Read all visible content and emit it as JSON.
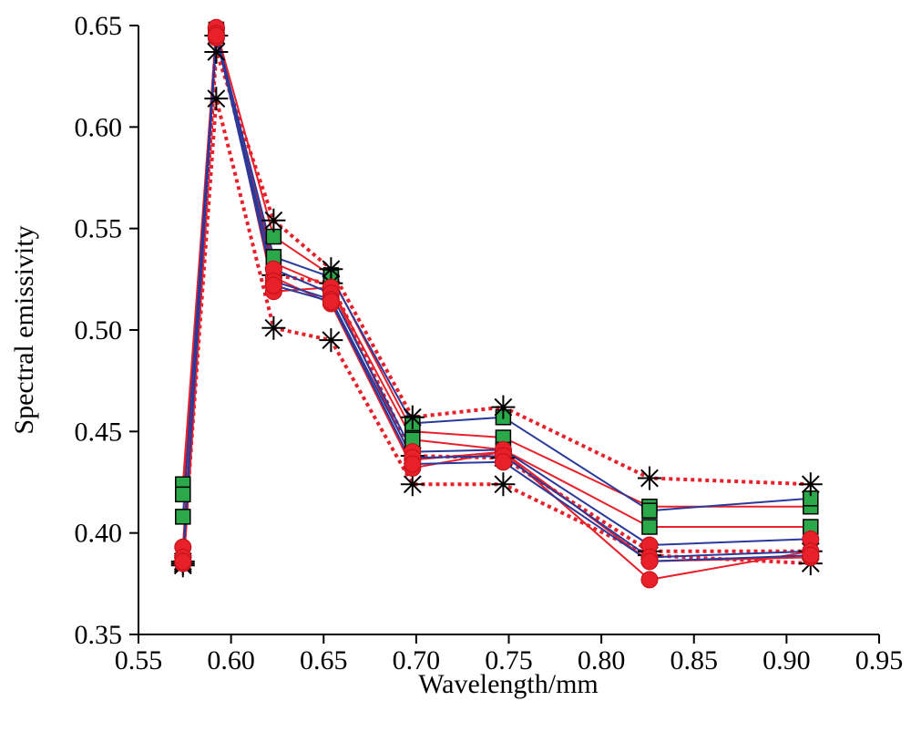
{
  "chart_data": {
    "type": "line",
    "title": "",
    "xlabel": "Wavelength/mm",
    "ylabel": "Spectral emissivity",
    "xlim": [
      0.55,
      0.95
    ],
    "ylim": [
      0.35,
      0.65
    ],
    "xticks": [
      "0.55",
      "0.60",
      "0.65",
      "0.70",
      "0.75",
      "0.80",
      "0.85",
      "0.90",
      "0.95"
    ],
    "yticks": [
      "0.35",
      "0.40",
      "0.45",
      "0.50",
      "0.55",
      "0.60",
      "0.65"
    ],
    "grid": false,
    "x": [
      0.574,
      0.592,
      0.623,
      0.654,
      0.698,
      0.747,
      0.826,
      0.913
    ],
    "series": [
      {
        "style": "dotted",
        "color": "#e8202a",
        "marker": "asterisk",
        "values": [
          0.384,
          0.637,
          0.554,
          0.53,
          0.457,
          0.462,
          0.427,
          0.424
        ]
      },
      {
        "style": "dotted",
        "color": "#e8202a",
        "marker": "asterisk",
        "values": [
          0.386,
          0.614,
          0.501,
          0.495,
          0.424,
          0.424,
          0.389,
          0.385
        ]
      },
      {
        "style": "dotted",
        "color": "#e8202a",
        "marker": "asterisk",
        "values": [
          0.385,
          0.645,
          0.527,
          0.523,
          0.438,
          0.437,
          0.391,
          0.391
        ]
      },
      {
        "style": "solid",
        "color": "#e8202a",
        "marker": "square",
        "values": [
          0.424,
          0.648,
          0.546,
          0.527,
          0.45,
          0.447,
          0.413,
          0.413
        ]
      },
      {
        "style": "solid",
        "color": "#e8202a",
        "marker": "square",
        "values": [
          0.419,
          0.647,
          0.533,
          0.521,
          0.446,
          0.441,
          0.403,
          0.403
        ]
      },
      {
        "style": "solid",
        "color": "#e8202a",
        "marker": "circle",
        "values": [
          0.393,
          0.648,
          0.526,
          0.513,
          0.432,
          0.44,
          0.377,
          0.391
        ]
      },
      {
        "style": "solid",
        "color": "#e8202a",
        "marker": "circle",
        "values": [
          0.385,
          0.649,
          0.519,
          0.521,
          0.436,
          0.44,
          0.386,
          0.388
        ]
      },
      {
        "style": "solid",
        "color": "#2a3a9a",
        "marker": "square",
        "values": [
          0.408,
          0.646,
          0.536,
          0.526,
          0.454,
          0.457,
          0.411,
          0.417
        ]
      },
      {
        "style": "solid",
        "color": "#2a3a9a",
        "marker": "circle",
        "values": [
          0.388,
          0.644,
          0.53,
          0.518,
          0.44,
          0.441,
          0.394,
          0.397
        ]
      },
      {
        "style": "solid",
        "color": "#2a3a9a",
        "marker": "circle",
        "values": [
          0.386,
          0.646,
          0.524,
          0.515,
          0.437,
          0.438,
          0.388,
          0.391
        ]
      },
      {
        "style": "solid",
        "color": "#2a3a9a",
        "marker": "circle",
        "values": [
          0.386,
          0.645,
          0.522,
          0.514,
          0.434,
          0.435,
          0.386,
          0.389
        ]
      }
    ],
    "marker_colors": {
      "square_fill": "#2aa84a",
      "circle_fill": "#e8202a",
      "asterisk": "#000000"
    }
  }
}
